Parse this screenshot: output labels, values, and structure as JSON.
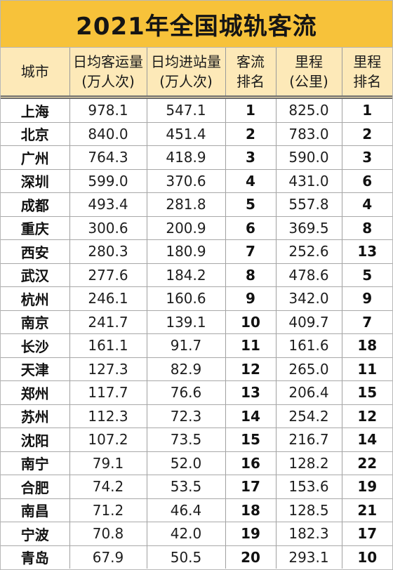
{
  "title": "2021年全国城轨客流",
  "headers": [
    [
      "城市"
    ],
    [
      "日均客运量",
      "(万人次)"
    ],
    [
      "日均进站量",
      "(万人次)"
    ],
    [
      "客流",
      "排名"
    ],
    [
      "里程",
      "(公里)"
    ],
    [
      "里程",
      "排名"
    ]
  ],
  "rows": [
    [
      "上海",
      "978.1",
      "547.1",
      "1",
      "825.0",
      "1"
    ],
    [
      "北京",
      "840.0",
      "451.4",
      "2",
      "783.0",
      "2"
    ],
    [
      "广州",
      "764.3",
      "418.9",
      "3",
      "590.0",
      "3"
    ],
    [
      "深圳",
      "599.0",
      "370.6",
      "4",
      "431.0",
      "6"
    ],
    [
      "成都",
      "493.4",
      "281.8",
      "5",
      "557.8",
      "4"
    ],
    [
      "重庆",
      "300.6",
      "200.9",
      "6",
      "369.5",
      "8"
    ],
    [
      "西安",
      "280.3",
      "180.9",
      "7",
      "252.6",
      "13"
    ],
    [
      "武汉",
      "277.6",
      "184.2",
      "8",
      "478.6",
      "5"
    ],
    [
      "杭州",
      "246.1",
      "160.6",
      "9",
      "342.0",
      "9"
    ],
    [
      "南京",
      "241.7",
      "139.1",
      "10",
      "409.7",
      "7"
    ],
    [
      "长沙",
      "161.1",
      "91.7",
      "11",
      "161.6",
      "18"
    ],
    [
      "天津",
      "127.3",
      "82.9",
      "12",
      "265.0",
      "11"
    ],
    [
      "郑州",
      "117.7",
      "76.6",
      "13",
      "206.4",
      "15"
    ],
    [
      "苏州",
      "112.3",
      "72.3",
      "14",
      "254.2",
      "12"
    ],
    [
      "沈阳",
      "107.2",
      "73.5",
      "15",
      "216.7",
      "14"
    ],
    [
      "南宁",
      "79.1",
      "52.0",
      "16",
      "128.2",
      "22"
    ],
    [
      "合肥",
      "74.2",
      "53.5",
      "17",
      "153.6",
      "19"
    ],
    [
      "南昌",
      "71.2",
      "46.4",
      "18",
      "128.5",
      "21"
    ],
    [
      "宁波",
      "70.8",
      "42.0",
      "19",
      "182.3",
      "17"
    ],
    [
      "青岛",
      "67.9",
      "50.5",
      "20",
      "293.1",
      "10"
    ]
  ]
}
